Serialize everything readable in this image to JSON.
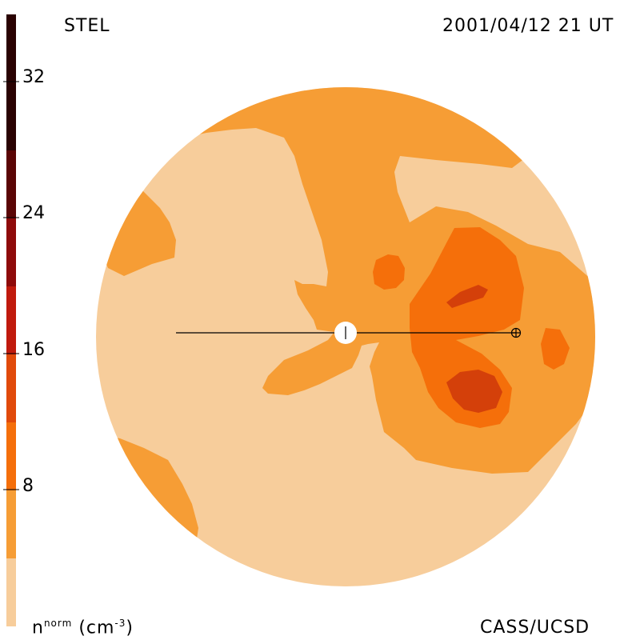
{
  "header": {
    "left_label": "STEL",
    "right_label": "2001/04/12 21 UT"
  },
  "footer": {
    "unit_base": "n",
    "unit_super": "norm",
    "unit_rest": "(cm",
    "unit_exp": "-3",
    "unit_close": ")",
    "credit": "CASS/UCSD"
  },
  "colorbar": {
    "ticks": [
      "32",
      "24",
      "16",
      "8"
    ],
    "colors": [
      "#f7cd9b",
      "#f69d35",
      "#f56f0a",
      "#e14a0a",
      "#c01a0d",
      "#8e0a0a",
      "#5a0505",
      "#2a0202"
    ]
  },
  "map": {
    "background_color": "#f7cd9b",
    "level_colors": {
      "level1": "#f69d35",
      "level2": "#f56f0a",
      "level3": "#d4400a"
    },
    "sun_symbol": "white-disc",
    "earth_symbol": "circle-plus"
  }
}
